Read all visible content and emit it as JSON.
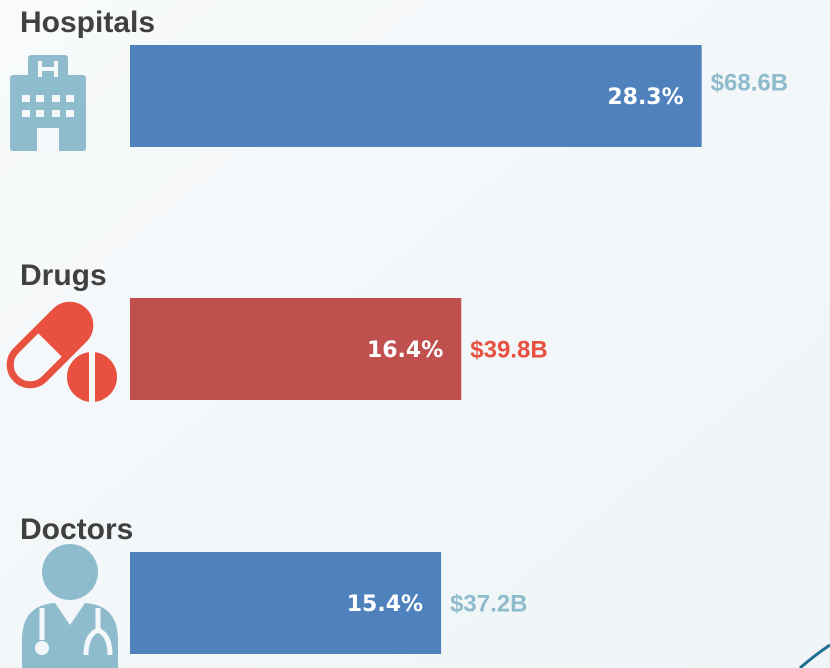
{
  "chart_data": {
    "type": "bar",
    "categories": [
      "Hospitals",
      "Drugs",
      "Doctors"
    ],
    "values": [
      28.3,
      16.4,
      15.4
    ],
    "value_labels": [
      "28.3%",
      "16.4%",
      "15.4%"
    ],
    "amounts": [
      68.6,
      39.8,
      37.2
    ],
    "amount_labels": [
      "$68.6B",
      "$39.8B",
      "$37.2B"
    ],
    "colors": [
      "#4f81bd",
      "#c0504d",
      "#4f81bd"
    ],
    "amount_colors": [
      "#8fbccd",
      "#e8503f",
      "#8fbccd"
    ]
  }
}
